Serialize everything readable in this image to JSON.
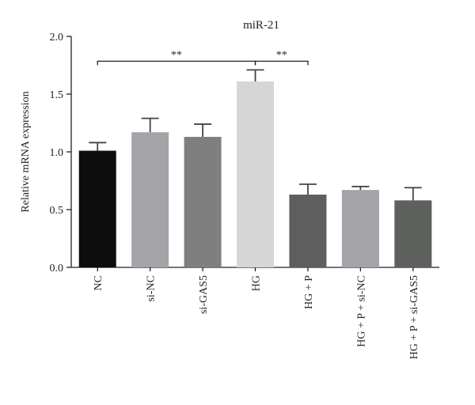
{
  "chart_data": {
    "type": "bar",
    "title": "miR-21",
    "xlabel": "",
    "ylabel": "Relative mRNA expression",
    "ylim": [
      0,
      2.0
    ],
    "yticks": [
      0.0,
      0.5,
      1.0,
      1.5,
      2.0
    ],
    "ytick_labels": [
      "0.0",
      "0.5",
      "1.0",
      "1.5",
      "2.0"
    ],
    "categories": [
      "NC",
      "si-NC",
      "si-GAS5",
      "HG",
      "HG + P",
      "HG + P + si-NC",
      "HG + P + si-GAS5"
    ],
    "values": [
      1.01,
      1.17,
      1.13,
      1.61,
      0.63,
      0.67,
      0.58
    ],
    "errors": [
      0.07,
      0.12,
      0.11,
      0.1,
      0.09,
      0.03,
      0.11
    ],
    "colors": [
      "#0d0d0d",
      "#a3a3a8",
      "#7f7f80",
      "#d6d6d6",
      "#5e5e5e",
      "#a3a3a8",
      "#5e605e"
    ],
    "significance": [
      {
        "from": 0,
        "to": 3,
        "label": "**"
      },
      {
        "from": 3,
        "to": 4,
        "label": "**"
      }
    ],
    "grid": false,
    "legend": "none"
  }
}
